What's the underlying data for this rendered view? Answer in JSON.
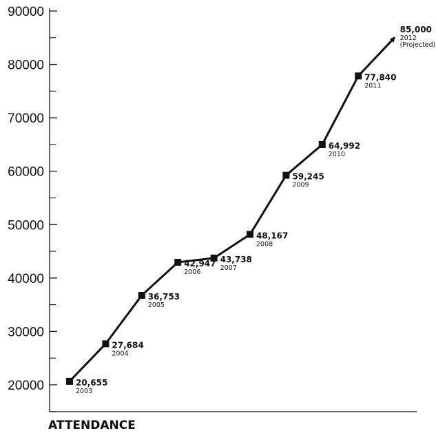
{
  "chart_data": {
    "type": "line",
    "title": "",
    "xlabel": "ATTENDANCE",
    "ylabel": "",
    "ylim": [
      15000,
      90000
    ],
    "y_ticks": [
      20000,
      30000,
      40000,
      50000,
      60000,
      70000,
      80000,
      90000
    ],
    "y_tick_labels": [
      "20000",
      "30000",
      "40000",
      "50000",
      "60000",
      "70000",
      "80000",
      "90000"
    ],
    "grid": false,
    "series": [
      {
        "points": [
          {
            "year": "2003",
            "value": 20655,
            "value_label": "20,655",
            "note": ""
          },
          {
            "year": "2004",
            "value": 27684,
            "value_label": "27,684",
            "note": ""
          },
          {
            "year": "2005",
            "value": 36753,
            "value_label": "36,753",
            "note": ""
          },
          {
            "year": "2006",
            "value": 42947,
            "value_label": "42,947",
            "note": ""
          },
          {
            "year": "2007",
            "value": 43738,
            "value_label": "43,738",
            "note": ""
          },
          {
            "year": "2008",
            "value": 48167,
            "value_label": "48,167",
            "note": ""
          },
          {
            "year": "2009",
            "value": 59245,
            "value_label": "59,245",
            "note": ""
          },
          {
            "year": "2010",
            "value": 64992,
            "value_label": "64,992",
            "note": ""
          },
          {
            "year": "2011",
            "value": 77840,
            "value_label": "77,840",
            "note": ""
          },
          {
            "year": "2012",
            "value": 85000,
            "value_label": "85,000",
            "note": "(Projected)",
            "projected": true
          }
        ]
      }
    ],
    "line_color": "#111111"
  }
}
